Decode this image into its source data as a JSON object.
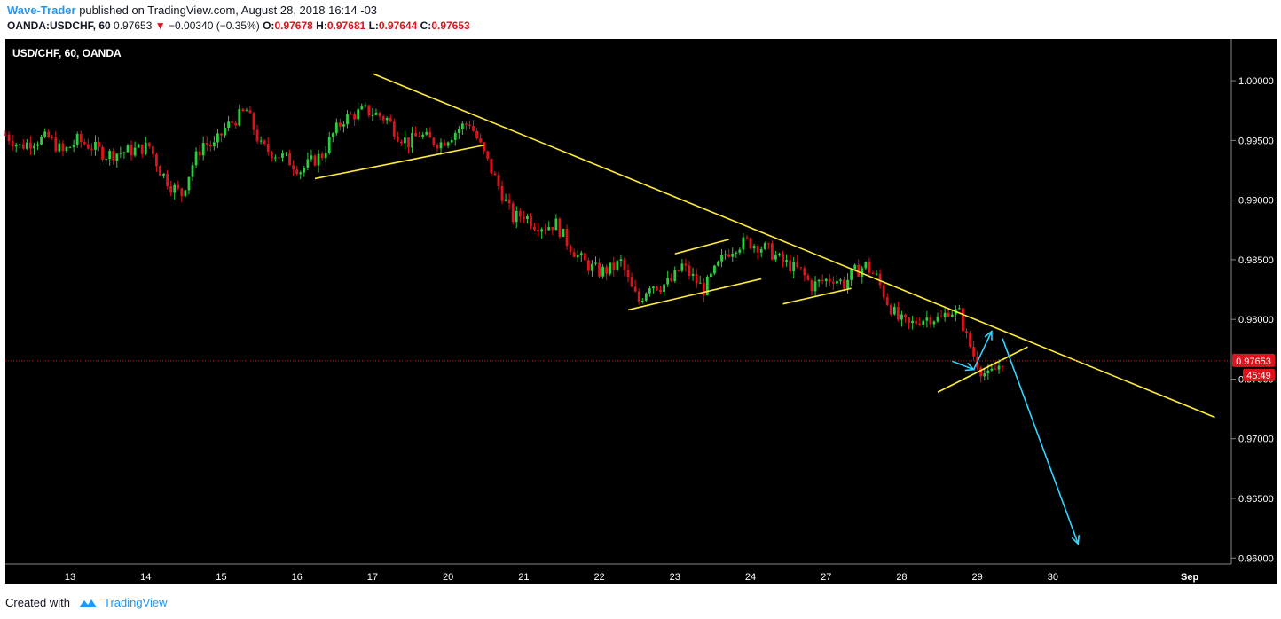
{
  "header": {
    "author": "Wave-Trader",
    "published_text": "published on TradingView.com, August 28, 2018 16:14 -03",
    "symbol": "OANDA:USDCHF, 60",
    "last": "0.97653",
    "change_arrow": "▼",
    "change": "−0.00340 (−0.35%)",
    "o_label": "O:",
    "o_value": "0.97678",
    "h_label": "H:",
    "h_value": "0.97681",
    "l_label": "L:",
    "l_value": "0.97644",
    "c_label": "C:",
    "c_value": "0.97653"
  },
  "footer": {
    "created_with": "Created with",
    "brand": "TradingView",
    "logo_icon": "tradingview-cloud-icon"
  },
  "colors": {
    "background": "#000000",
    "up_candle": "#2ecc40",
    "down_candle": "#e0131c",
    "trendline": "#ffeb3b",
    "arrows": "#33d6ff",
    "price_line": "#e0131c",
    "axis_text": "#ffffff"
  },
  "chart_data": {
    "type": "candlestick",
    "title": "USD/CHF, 60, OANDA",
    "ylim": [
      0.9595,
      1.0035
    ],
    "y_ticks": [
      "1.00000",
      "0.99500",
      "0.99000",
      "0.98500",
      "0.98000",
      "0.97500",
      "0.97000",
      "0.96500",
      "0.96000"
    ],
    "y_tick_values": [
      1.0,
      0.995,
      0.99,
      0.985,
      0.98,
      0.975,
      0.97,
      0.965,
      0.96
    ],
    "x_ticks": [
      "13",
      "14",
      "15",
      "16",
      "17",
      "20",
      "21",
      "22",
      "23",
      "24",
      "27",
      "28",
      "29",
      "30",
      "Sep"
    ],
    "x_tick_index": [
      18,
      39,
      60,
      81,
      102,
      123,
      144,
      165,
      186,
      207,
      228,
      249,
      270,
      291,
      329
    ],
    "last_price_label": "0.97653",
    "countdown_label": "45:49",
    "last_price": 0.97653,
    "close_path": [
      [
        0,
        0.9955
      ],
      [
        4,
        0.9945
      ],
      [
        8,
        0.995
      ],
      [
        12,
        0.9952
      ],
      [
        16,
        0.994
      ],
      [
        20,
        0.995
      ],
      [
        24,
        0.9945
      ],
      [
        28,
        0.9938
      ],
      [
        32,
        0.994
      ],
      [
        36,
        0.9942
      ],
      [
        40,
        0.9945
      ],
      [
        43,
        0.9925
      ],
      [
        46,
        0.9912
      ],
      [
        49,
        0.9905
      ],
      [
        52,
        0.993
      ],
      [
        55,
        0.9948
      ],
      [
        58,
        0.9945
      ],
      [
        61,
        0.996
      ],
      [
        64,
        0.9968
      ],
      [
        67,
        0.9975
      ],
      [
        69,
        0.996
      ],
      [
        71,
        0.9945
      ],
      [
        74,
        0.994
      ],
      [
        78,
        0.9935
      ],
      [
        82,
        0.9925
      ],
      [
        85,
        0.9932
      ],
      [
        88,
        0.9938
      ],
      [
        91,
        0.9955
      ],
      [
        94,
        0.9968
      ],
      [
        97,
        0.9972
      ],
      [
        100,
        0.9975
      ],
      [
        103,
        0.9972
      ],
      [
        106,
        0.9968
      ],
      [
        109,
        0.9955
      ],
      [
        112,
        0.9948
      ],
      [
        115,
        0.9955
      ],
      [
        118,
        0.995
      ],
      [
        121,
        0.9948
      ],
      [
        124,
        0.9955
      ],
      [
        127,
        0.9962
      ],
      [
        129,
        0.9965
      ],
      [
        132,
        0.9945
      ],
      [
        135,
        0.9925
      ],
      [
        138,
        0.9905
      ],
      [
        141,
        0.9885
      ],
      [
        144,
        0.9888
      ],
      [
        147,
        0.988
      ],
      [
        150,
        0.9878
      ],
      [
        153,
        0.988
      ],
      [
        156,
        0.9865
      ],
      [
        159,
        0.9853
      ],
      [
        162,
        0.9845
      ],
      [
        165,
        0.984
      ],
      [
        168,
        0.9842
      ],
      [
        171,
        0.9848
      ],
      [
        174,
        0.9825
      ],
      [
        176,
        0.9815
      ],
      [
        179,
        0.983
      ],
      [
        182,
        0.9828
      ],
      [
        185,
        0.9832
      ],
      [
        188,
        0.9845
      ],
      [
        191,
        0.9835
      ],
      [
        194,
        0.9825
      ],
      [
        197,
        0.984
      ],
      [
        200,
        0.9855
      ],
      [
        203,
        0.9862
      ],
      [
        206,
        0.9865
      ],
      [
        209,
        0.9862
      ],
      [
        212,
        0.9858
      ],
      [
        215,
        0.985
      ],
      [
        218,
        0.9845
      ],
      [
        221,
        0.984
      ],
      [
        224,
        0.9828
      ],
      [
        227,
        0.9832
      ],
      [
        230,
        0.9835
      ],
      [
        233,
        0.983
      ],
      [
        236,
        0.984
      ],
      [
        239,
        0.9845
      ],
      [
        242,
        0.9835
      ],
      [
        245,
        0.9815
      ],
      [
        248,
        0.98
      ],
      [
        251,
        0.9795
      ],
      [
        254,
        0.98
      ],
      [
        257,
        0.9802
      ],
      [
        260,
        0.98
      ],
      [
        262,
        0.9808
      ],
      [
        265,
        0.9805
      ],
      [
        267,
        0.9785
      ],
      [
        269,
        0.977
      ],
      [
        271,
        0.9758
      ],
      [
        273,
        0.9752
      ],
      [
        275,
        0.9758
      ],
      [
        277,
        0.9765
      ]
    ],
    "annotations": {
      "trendlines": [
        {
          "from": [
            102,
            1.0006
          ],
          "to": [
            336,
            0.9718
          ],
          "name": "main-resistance"
        },
        {
          "from": [
            86,
            0.9918
          ],
          "to": [
            133,
            0.9946
          ],
          "name": "support-1"
        },
        {
          "from": [
            173,
            0.9808
          ],
          "to": [
            210,
            0.9834
          ],
          "name": "support-2"
        },
        {
          "from": [
            186,
            0.9855
          ],
          "to": [
            201,
            0.9867
          ],
          "name": "channel-top"
        },
        {
          "from": [
            216,
            0.9813
          ],
          "to": [
            235,
            0.9826
          ],
          "name": "support-3"
        },
        {
          "from": [
            259,
            0.9739
          ],
          "to": [
            284,
            0.9777
          ],
          "name": "wedge-support"
        }
      ],
      "arrows": [
        {
          "from": [
            263,
            0.9765
          ],
          "to": [
            269,
            0.9758
          ],
          "name": "arrow-down-short"
        },
        {
          "from": [
            269,
            0.9758
          ],
          "to": [
            274,
            0.979
          ],
          "name": "arrow-up"
        },
        {
          "from": [
            277,
            0.9784
          ],
          "to": [
            298,
            0.9612
          ],
          "name": "arrow-down-long"
        }
      ]
    }
  }
}
